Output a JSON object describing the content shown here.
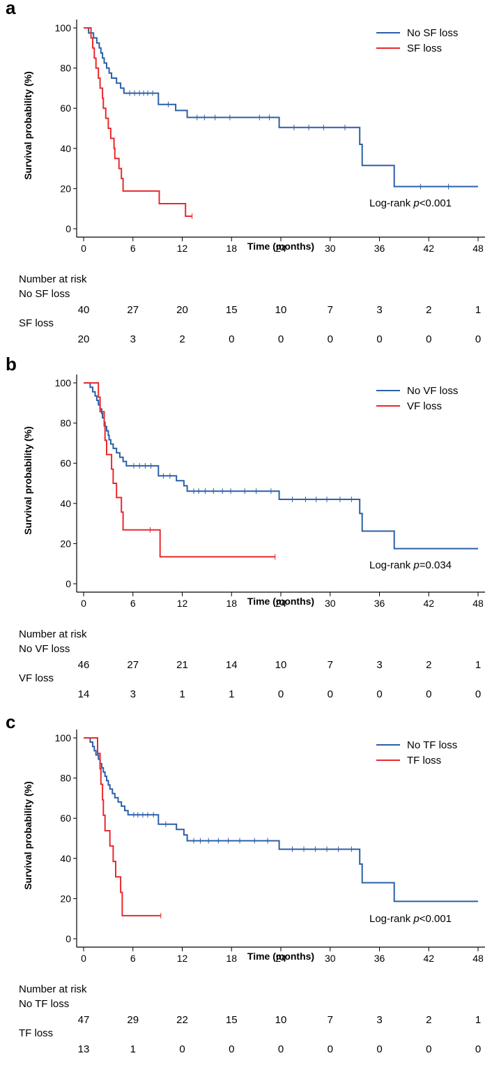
{
  "colors": {
    "no_loss": "#2b5fa8",
    "loss": "#e8292c",
    "axis": "#000000"
  },
  "chart_data": [
    {
      "type": "line",
      "panel_label": "a",
      "ylabel": "Survival probability (%)",
      "xlabel": "Time (months)",
      "xlim": [
        0,
        48
      ],
      "ylim": [
        0,
        100
      ],
      "x_ticks": [
        0,
        6,
        12,
        18,
        24,
        30,
        36,
        42,
        48
      ],
      "y_ticks": [
        0,
        20,
        40,
        60,
        80,
        100
      ],
      "legend": [
        "No SF loss",
        "SF loss"
      ],
      "annotation": {
        "prefix": "Log-rank ",
        "p": "p",
        "suffix": "<0.001"
      },
      "series": [
        {
          "name": "No SF loss",
          "steps": [
            [
              0,
              100
            ],
            [
              0.6,
              97.5
            ],
            [
              1.2,
              95
            ],
            [
              1.6,
              92.5
            ],
            [
              1.9,
              90
            ],
            [
              2.1,
              87.5
            ],
            [
              2.3,
              85
            ],
            [
              2.5,
              82.5
            ],
            [
              2.8,
              80
            ],
            [
              3.1,
              77.5
            ],
            [
              3.4,
              75
            ],
            [
              4.0,
              72.5
            ],
            [
              4.5,
              70
            ],
            [
              4.9,
              67.5
            ],
            [
              9.1,
              61.9
            ],
            [
              11.2,
              58.9
            ],
            [
              12.6,
              55.4
            ],
            [
              23.8,
              50.4
            ],
            [
              33.6,
              42
            ],
            [
              33.9,
              31.5
            ],
            [
              37.8,
              21
            ]
          ],
          "end": 48,
          "censor": [
            [
              5.6,
              67.5
            ],
            [
              6.2,
              67.5
            ],
            [
              6.8,
              67.5
            ],
            [
              7.3,
              67.5
            ],
            [
              7.8,
              67.5
            ],
            [
              8.4,
              67.5
            ],
            [
              10.3,
              61.9
            ],
            [
              13.8,
              55.4
            ],
            [
              14.7,
              55.4
            ],
            [
              16.0,
              55.4
            ],
            [
              17.8,
              55.4
            ],
            [
              21.4,
              55.4
            ],
            [
              22.6,
              55.4
            ],
            [
              25.6,
              50.4
            ],
            [
              27.4,
              50.4
            ],
            [
              29.2,
              50.4
            ],
            [
              31.8,
              50.4
            ],
            [
              41.0,
              21
            ],
            [
              44.4,
              21
            ]
          ]
        },
        {
          "name": "SF loss",
          "steps": [
            [
              0,
              100
            ],
            [
              0.9,
              95
            ],
            [
              1.1,
              90
            ],
            [
              1.3,
              85
            ],
            [
              1.5,
              80
            ],
            [
              1.8,
              75
            ],
            [
              2.0,
              70
            ],
            [
              2.3,
              65
            ],
            [
              2.4,
              60
            ],
            [
              2.7,
              55
            ],
            [
              3.0,
              50
            ],
            [
              3.3,
              45
            ],
            [
              3.7,
              40
            ],
            [
              3.8,
              35
            ],
            [
              4.3,
              30
            ],
            [
              4.6,
              25
            ],
            [
              4.8,
              18.8
            ],
            [
              9.2,
              12.5
            ],
            [
              12.4,
              6.25
            ]
          ],
          "end": 13.2,
          "censor": [
            [
              13.2,
              6.25
            ]
          ]
        }
      ],
      "risk": {
        "title": "Number at risk",
        "groups": [
          {
            "label": "No SF loss",
            "values": [
              "40",
              "27",
              "20",
              "15",
              "10",
              "7",
              "3",
              "2",
              "1"
            ]
          },
          {
            "label": "SF loss",
            "values": [
              "20",
              "3",
              "2",
              "0",
              "0",
              "0",
              "0",
              "0",
              "0"
            ]
          }
        ]
      }
    },
    {
      "type": "line",
      "panel_label": "b",
      "ylabel": "Survival probability (%)",
      "xlabel": "Time (months)",
      "xlim": [
        0,
        48
      ],
      "ylim": [
        0,
        100
      ],
      "x_ticks": [
        0,
        6,
        12,
        18,
        24,
        30,
        36,
        42,
        48
      ],
      "y_ticks": [
        0,
        20,
        40,
        60,
        80,
        100
      ],
      "legend": [
        "No VF loss",
        "VF loss"
      ],
      "annotation": {
        "prefix": "Log-rank ",
        "p": "p",
        "suffix": "=0.034"
      },
      "series": [
        {
          "name": "No VF loss",
          "steps": [
            [
              0,
              100
            ],
            [
              0.8,
              97.8
            ],
            [
              1.1,
              95.6
            ],
            [
              1.4,
              93.5
            ],
            [
              1.6,
              91.3
            ],
            [
              1.8,
              89.1
            ],
            [
              2.0,
              87
            ],
            [
              2.2,
              84.8
            ],
            [
              2.3,
              82.6
            ],
            [
              2.5,
              80.4
            ],
            [
              2.6,
              78.3
            ],
            [
              2.8,
              76.1
            ],
            [
              3.0,
              73.9
            ],
            [
              3.1,
              71.7
            ],
            [
              3.3,
              69.6
            ],
            [
              3.6,
              67.4
            ],
            [
              4.0,
              65.2
            ],
            [
              4.4,
              63
            ],
            [
              4.8,
              60.9
            ],
            [
              5.2,
              58.7
            ],
            [
              9.1,
              53.7
            ],
            [
              11.3,
              51.3
            ],
            [
              12.2,
              48.8
            ],
            [
              12.6,
              46.1
            ],
            [
              23.8,
              42
            ],
            [
              33.6,
              35
            ],
            [
              33.9,
              26.2
            ],
            [
              37.8,
              17.5
            ]
          ],
          "end": 48,
          "censor": [
            [
              6.1,
              58.7
            ],
            [
              6.8,
              58.7
            ],
            [
              7.5,
              58.7
            ],
            [
              8.2,
              58.7
            ],
            [
              9.7,
              53.7
            ],
            [
              10.5,
              53.7
            ],
            [
              13.4,
              46.1
            ],
            [
              14.0,
              46.1
            ],
            [
              14.8,
              46.1
            ],
            [
              15.8,
              46.1
            ],
            [
              16.9,
              46.1
            ],
            [
              17.9,
              46.1
            ],
            [
              19.6,
              46.1
            ],
            [
              21.0,
              46.1
            ],
            [
              22.8,
              46.1
            ],
            [
              25.4,
              42
            ],
            [
              27.0,
              42
            ],
            [
              28.3,
              42
            ],
            [
              29.6,
              42
            ],
            [
              31.2,
              42
            ],
            [
              32.6,
              42
            ]
          ]
        },
        {
          "name": "VF loss",
          "steps": [
            [
              0,
              100
            ],
            [
              1.8,
              92.9
            ],
            [
              2.0,
              85.7
            ],
            [
              2.5,
              78.6
            ],
            [
              2.6,
              71.4
            ],
            [
              2.8,
              64.3
            ],
            [
              3.4,
              57.1
            ],
            [
              3.6,
              50
            ],
            [
              4.0,
              42.9
            ],
            [
              4.6,
              35.7
            ],
            [
              4.8,
              26.8
            ],
            [
              9.3,
              13.4
            ]
          ],
          "end": 23.3,
          "censor": [
            [
              8.1,
              26.8
            ],
            [
              23.3,
              13.4
            ]
          ]
        }
      ],
      "risk": {
        "title": "Number at risk",
        "groups": [
          {
            "label": "No VF loss",
            "values": [
              "46",
              "27",
              "21",
              "14",
              "10",
              "7",
              "3",
              "2",
              "1"
            ]
          },
          {
            "label": "VF loss",
            "values": [
              "14",
              "3",
              "1",
              "1",
              "0",
              "0",
              "0",
              "0",
              "0"
            ]
          }
        ]
      }
    },
    {
      "type": "line",
      "panel_label": "c",
      "ylabel": "Survival probability (%)",
      "xlabel": "Time (months)",
      "xlim": [
        0,
        48
      ],
      "ylim": [
        0,
        100
      ],
      "x_ticks": [
        0,
        6,
        12,
        18,
        24,
        30,
        36,
        42,
        48
      ],
      "y_ticks": [
        0,
        20,
        40,
        60,
        80,
        100
      ],
      "legend": [
        "No TF loss",
        "TF loss"
      ],
      "annotation": {
        "prefix": "Log-rank ",
        "p": "p",
        "suffix": "<0.001"
      },
      "series": [
        {
          "name": "No TF loss",
          "steps": [
            [
              0,
              100
            ],
            [
              0.8,
              97.9
            ],
            [
              1.1,
              95.7
            ],
            [
              1.3,
              93.6
            ],
            [
              1.5,
              91.5
            ],
            [
              1.8,
              89.4
            ],
            [
              2.0,
              87.2
            ],
            [
              2.2,
              85.1
            ],
            [
              2.4,
              83
            ],
            [
              2.6,
              80.9
            ],
            [
              2.8,
              78.7
            ],
            [
              3.0,
              76.6
            ],
            [
              3.2,
              74.5
            ],
            [
              3.5,
              72.3
            ],
            [
              3.8,
              70.2
            ],
            [
              4.2,
              68.1
            ],
            [
              4.6,
              66
            ],
            [
              5.0,
              63.8
            ],
            [
              5.4,
              61.7
            ],
            [
              9.1,
              57
            ],
            [
              11.3,
              54.4
            ],
            [
              12.2,
              51.7
            ],
            [
              12.6,
              48.8
            ],
            [
              23.8,
              44.6
            ],
            [
              33.6,
              37.2
            ],
            [
              33.9,
              27.9
            ],
            [
              37.8,
              18.6
            ]
          ],
          "end": 48,
          "censor": [
            [
              6.1,
              61.7
            ],
            [
              6.6,
              61.7
            ],
            [
              7.2,
              61.7
            ],
            [
              7.8,
              61.7
            ],
            [
              8.5,
              61.7
            ],
            [
              10.0,
              57
            ],
            [
              13.4,
              48.8
            ],
            [
              14.2,
              48.8
            ],
            [
              15.2,
              48.8
            ],
            [
              16.4,
              48.8
            ],
            [
              17.6,
              48.8
            ],
            [
              19.0,
              48.8
            ],
            [
              20.8,
              48.8
            ],
            [
              22.4,
              48.8
            ],
            [
              25.4,
              44.6
            ],
            [
              26.8,
              44.6
            ],
            [
              28.2,
              44.6
            ],
            [
              29.6,
              44.6
            ],
            [
              31.0,
              44.6
            ],
            [
              32.6,
              44.6
            ]
          ]
        },
        {
          "name": "TF loss",
          "steps": [
            [
              0,
              100
            ],
            [
              1.7,
              92.3
            ],
            [
              2.0,
              84.6
            ],
            [
              2.1,
              76.9
            ],
            [
              2.3,
              69.2
            ],
            [
              2.4,
              61.5
            ],
            [
              2.6,
              53.8
            ],
            [
              3.2,
              46.2
            ],
            [
              3.6,
              38.5
            ],
            [
              3.9,
              30.8
            ],
            [
              4.5,
              23.1
            ],
            [
              4.7,
              11.5
            ]
          ],
          "end": 9.4,
          "censor": [
            [
              9.4,
              11.5
            ]
          ]
        }
      ],
      "risk": {
        "title": "Number at risk",
        "groups": [
          {
            "label": "No TF loss",
            "values": [
              "47",
              "29",
              "22",
              "15",
              "10",
              "7",
              "3",
              "2",
              "1"
            ]
          },
          {
            "label": "TF loss",
            "values": [
              "13",
              "1",
              "0",
              "0",
              "0",
              "0",
              "0",
              "0",
              "0"
            ]
          }
        ]
      }
    }
  ]
}
